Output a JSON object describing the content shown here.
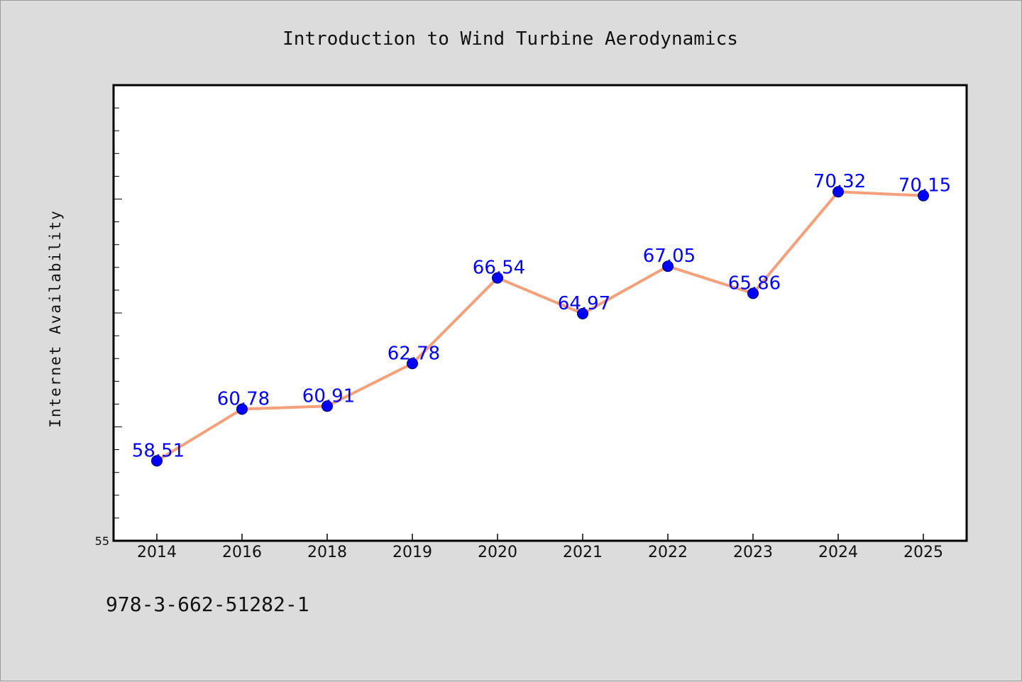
{
  "colors": {
    "background": "#dcdcdc",
    "plot_background": "#ffffff",
    "line": "#f4a07a",
    "marker": "#0000ff",
    "data_label": "#0000ff",
    "axis": "#000000"
  },
  "footer": {
    "isbn": "978-3-662-51282-1"
  },
  "chart_data": {
    "type": "line",
    "title": "Introduction to Wind Turbine Aerodynamics",
    "xlabel": "",
    "ylabel": "Internet Availability",
    "categories": [
      "2014",
      "2016",
      "2018",
      "2019",
      "2020",
      "2021",
      "2022",
      "2023",
      "2024",
      "2025"
    ],
    "values": [
      58.51,
      60.78,
      60.91,
      62.78,
      66.54,
      64.97,
      67.05,
      65.86,
      70.32,
      70.15
    ],
    "data_labels": [
      "58.51",
      "60.78",
      "60.91",
      "62.78",
      "66.54",
      "64.97",
      "67.05",
      "65.86",
      "70.32",
      "70.15"
    ],
    "ylim": [
      55,
      75
    ],
    "ytick_labels": [
      "55"
    ],
    "grid": false,
    "legend": "none"
  }
}
